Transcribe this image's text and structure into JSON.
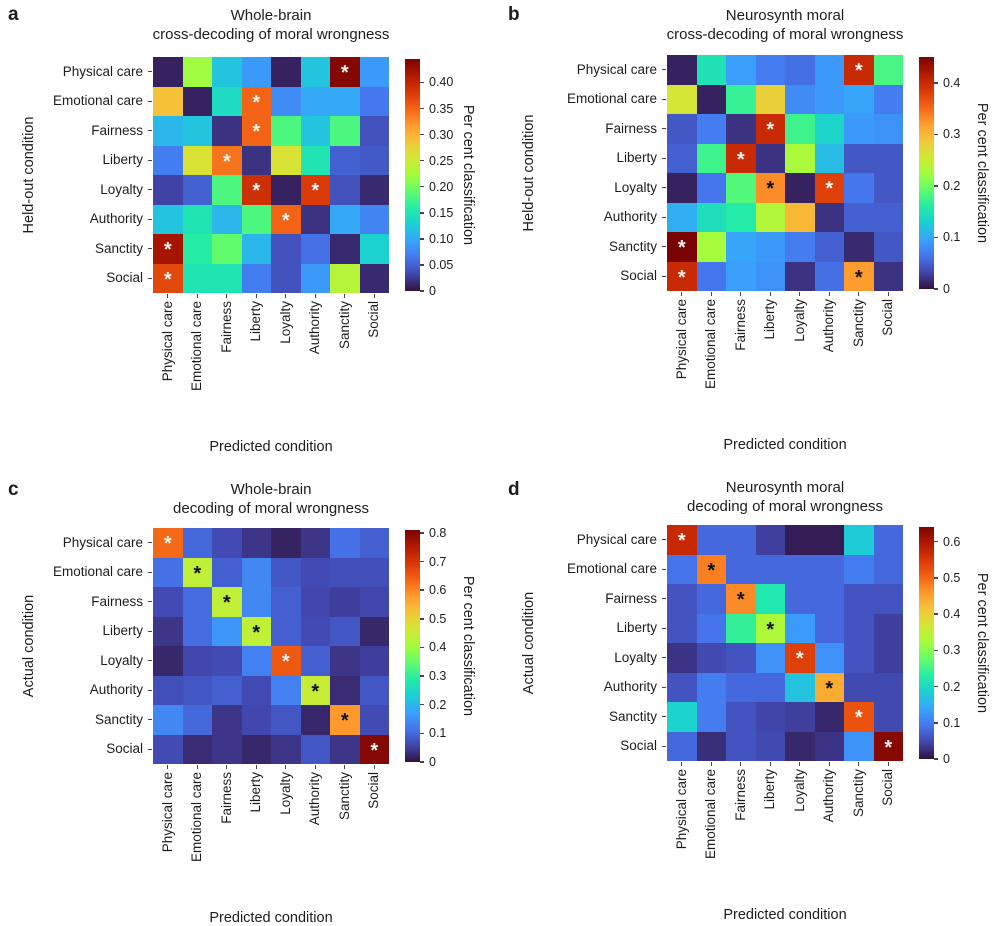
{
  "figure": {
    "background": "#ffffff",
    "colormap": "turbo",
    "turbo_stops": [
      "#30123b",
      "#4145ab",
      "#4675ed",
      "#39a2fc",
      "#1bcfd4",
      "#24eca6",
      "#61fc6c",
      "#a4fc3c",
      "#d1e834",
      "#f3c63a",
      "#fe9b2d",
      "#f36315",
      "#d93806",
      "#b11901",
      "#7a0403"
    ]
  },
  "conditions": [
    "Physical care",
    "Emotional care",
    "Fairness",
    "Liberty",
    "Loyalty",
    "Authority",
    "Sanctity",
    "Social"
  ],
  "chart_data": [
    {
      "type": "heatmap",
      "panel": "a",
      "title": [
        "Whole-brain",
        "cross-decoding of moral wrongness"
      ],
      "ylabel": "Held-out condition",
      "xlabel": "Predicted condition",
      "rows": [
        "Physical care",
        "Emotional care",
        "Fairness",
        "Liberty",
        "Loyalty",
        "Authority",
        "Sanctity",
        "Social"
      ],
      "cols": [
        "Physical care",
        "Emotional care",
        "Fairness",
        "Liberty",
        "Loyalty",
        "Authority",
        "Sanctity",
        "Social"
      ],
      "vmax": 0.445,
      "values": [
        [
          0.01,
          0.22,
          0.12,
          0.09,
          0.01,
          0.12,
          0.44,
          0.09
        ],
        [
          0.29,
          0.01,
          0.14,
          0.35,
          0.08,
          0.1,
          0.1,
          0.065
        ],
        [
          0.11,
          0.12,
          0.02,
          0.35,
          0.18,
          0.12,
          0.18,
          0.04
        ],
        [
          0.07,
          0.26,
          0.34,
          0.02,
          0.26,
          0.15,
          0.05,
          0.045
        ],
        [
          0.03,
          0.05,
          0.18,
          0.39,
          0.01,
          0.38,
          0.04,
          0.015
        ],
        [
          0.12,
          0.15,
          0.11,
          0.18,
          0.35,
          0.02,
          0.1,
          0.075
        ],
        [
          0.42,
          0.16,
          0.19,
          0.11,
          0.04,
          0.06,
          0.015,
          0.13
        ],
        [
          0.37,
          0.15,
          0.15,
          0.07,
          0.04,
          0.09,
          0.235,
          0.015
        ]
      ],
      "significance": [
        [
          0,
          6,
          "white"
        ],
        [
          1,
          3,
          "white"
        ],
        [
          2,
          3,
          "white"
        ],
        [
          3,
          2,
          "white"
        ],
        [
          4,
          3,
          "white"
        ],
        [
          4,
          5,
          "white"
        ],
        [
          5,
          4,
          "white"
        ],
        [
          6,
          0,
          "white"
        ],
        [
          7,
          0,
          "white"
        ]
      ],
      "colorbar": {
        "label": "Per cent classification",
        "ticks": [
          0,
          0.05,
          0.1,
          0.15,
          0.2,
          0.25,
          0.3,
          0.35,
          0.4
        ],
        "tick_labels": [
          "0",
          "0.05",
          "0.10",
          "0.15",
          "0.20",
          "0.25",
          "0.30",
          "0.35",
          "0.40"
        ]
      }
    },
    {
      "type": "heatmap",
      "panel": "b",
      "title": [
        "Neurosynth moral",
        "cross-decoding of moral wrongness"
      ],
      "ylabel": "Held-out condition",
      "xlabel": "Predicted condition",
      "rows": [
        "Physical care",
        "Emotional care",
        "Fairness",
        "Liberty",
        "Loyalty",
        "Authority",
        "Sanctity",
        "Social"
      ],
      "cols": [
        "Physical care",
        "Emotional care",
        "Fairness",
        "Liberty",
        "Loyalty",
        "Authority",
        "Sanctity",
        "Social"
      ],
      "vmax": 0.45,
      "values": [
        [
          0.01,
          0.15,
          0.095,
          0.07,
          0.06,
          0.09,
          0.4,
          0.18
        ],
        [
          0.26,
          0.01,
          0.17,
          0.28,
          0.08,
          0.09,
          0.1,
          0.07
        ],
        [
          0.045,
          0.07,
          0.02,
          0.4,
          0.175,
          0.135,
          0.09,
          0.085
        ],
        [
          0.05,
          0.175,
          0.4,
          0.02,
          0.23,
          0.115,
          0.045,
          0.045
        ],
        [
          0.01,
          0.065,
          0.185,
          0.33,
          0.01,
          0.38,
          0.065,
          0.045
        ],
        [
          0.105,
          0.145,
          0.16,
          0.235,
          0.3,
          0.02,
          0.05,
          0.05
        ],
        [
          0.45,
          0.225,
          0.1,
          0.09,
          0.07,
          0.05,
          0.015,
          0.045
        ],
        [
          0.4,
          0.065,
          0.095,
          0.085,
          0.02,
          0.06,
          0.32,
          0.02
        ]
      ],
      "significance": [
        [
          0,
          6,
          "white"
        ],
        [
          2,
          3,
          "white"
        ],
        [
          3,
          2,
          "white"
        ],
        [
          4,
          3,
          "black"
        ],
        [
          4,
          5,
          "white"
        ],
        [
          6,
          0,
          "white"
        ],
        [
          7,
          0,
          "white"
        ],
        [
          7,
          6,
          "black"
        ]
      ],
      "colorbar": {
        "label": "Per cent classification",
        "ticks": [
          0,
          0.1,
          0.2,
          0.3,
          0.4
        ],
        "tick_labels": [
          "0",
          "0.1",
          "0.2",
          "0.3",
          "0.4"
        ]
      }
    },
    {
      "type": "heatmap",
      "panel": "c",
      "title": [
        "Whole-brain",
        "decoding of moral wrongness"
      ],
      "ylabel": "Actual condition",
      "xlabel": "Predicted condition",
      "rows": [
        "Physical care",
        "Emotional care",
        "Fairness",
        "Liberty",
        "Loyalty",
        "Authority",
        "Sanctity",
        "Social"
      ],
      "cols": [
        "Physical care",
        "Emotional care",
        "Fairness",
        "Liberty",
        "Loyalty",
        "Authority",
        "Sanctity",
        "Social"
      ],
      "vmax": 0.81,
      "values": [
        [
          0.63,
          0.1,
          0.065,
          0.04,
          0.02,
          0.04,
          0.11,
          0.09
        ],
        [
          0.11,
          0.44,
          0.09,
          0.14,
          0.08,
          0.065,
          0.07,
          0.07
        ],
        [
          0.065,
          0.105,
          0.44,
          0.14,
          0.09,
          0.06,
          0.05,
          0.06
        ],
        [
          0.04,
          0.105,
          0.16,
          0.44,
          0.09,
          0.065,
          0.08,
          0.025
        ],
        [
          0.025,
          0.06,
          0.065,
          0.13,
          0.65,
          0.09,
          0.04,
          0.05
        ],
        [
          0.07,
          0.08,
          0.09,
          0.065,
          0.13,
          0.45,
          0.03,
          0.08
        ],
        [
          0.14,
          0.1,
          0.04,
          0.06,
          0.08,
          0.025,
          0.58,
          0.065
        ],
        [
          0.065,
          0.03,
          0.04,
          0.025,
          0.04,
          0.08,
          0.04,
          0.8
        ]
      ],
      "significance": [
        [
          0,
          0,
          "white"
        ],
        [
          1,
          1,
          "black"
        ],
        [
          2,
          2,
          "black"
        ],
        [
          3,
          3,
          "black"
        ],
        [
          4,
          4,
          "white"
        ],
        [
          5,
          5,
          "black"
        ],
        [
          6,
          6,
          "black"
        ],
        [
          7,
          7,
          "white"
        ]
      ],
      "colorbar": {
        "label": "Per cent classification",
        "ticks": [
          0,
          0.1,
          0.2,
          0.3,
          0.4,
          0.5,
          0.6,
          0.7,
          0.8
        ],
        "tick_labels": [
          "0",
          "0.1",
          "0.2",
          "0.3",
          "0.4",
          "0.5",
          "0.6",
          "0.7",
          "0.8"
        ]
      }
    },
    {
      "type": "heatmap",
      "panel": "d",
      "title": [
        "Neurosynth moral",
        "decoding of moral wrongness"
      ],
      "ylabel": "Actual condition",
      "xlabel": "Predicted condition",
      "rows": [
        "Physical care",
        "Emotional care",
        "Fairness",
        "Liberty",
        "Loyalty",
        "Authority",
        "Sanctity",
        "Social"
      ],
      "cols": [
        "Physical care",
        "Emotional care",
        "Fairness",
        "Liberty",
        "Loyalty",
        "Authority",
        "Sanctity",
        "Social"
      ],
      "vmax": 0.64,
      "values": [
        [
          0.57,
          0.08,
          0.08,
          0.04,
          0.01,
          0.01,
          0.18,
          0.08
        ],
        [
          0.09,
          0.48,
          0.08,
          0.08,
          0.08,
          0.08,
          0.1,
          0.08
        ],
        [
          0.06,
          0.08,
          0.47,
          0.22,
          0.08,
          0.08,
          0.06,
          0.06
        ],
        [
          0.06,
          0.09,
          0.24,
          0.33,
          0.13,
          0.08,
          0.06,
          0.04
        ],
        [
          0.03,
          0.05,
          0.06,
          0.12,
          0.54,
          0.12,
          0.06,
          0.04
        ],
        [
          0.06,
          0.1,
          0.08,
          0.08,
          0.17,
          0.44,
          0.05,
          0.05
        ],
        [
          0.19,
          0.1,
          0.06,
          0.045,
          0.04,
          0.02,
          0.52,
          0.05
        ],
        [
          0.08,
          0.025,
          0.06,
          0.05,
          0.02,
          0.03,
          0.12,
          0.63
        ]
      ],
      "significance": [
        [
          0,
          0,
          "white"
        ],
        [
          1,
          1,
          "black"
        ],
        [
          2,
          2,
          "black"
        ],
        [
          3,
          3,
          "black"
        ],
        [
          4,
          4,
          "white"
        ],
        [
          5,
          5,
          "black"
        ],
        [
          6,
          6,
          "white"
        ],
        [
          7,
          7,
          "white"
        ]
      ],
      "colorbar": {
        "label": "Per cent classification",
        "ticks": [
          0,
          0.1,
          0.2,
          0.3,
          0.4,
          0.5,
          0.6
        ],
        "tick_labels": [
          "0",
          "0.1",
          "0.2",
          "0.3",
          "0.4",
          "0.5",
          "0.6"
        ]
      }
    }
  ]
}
